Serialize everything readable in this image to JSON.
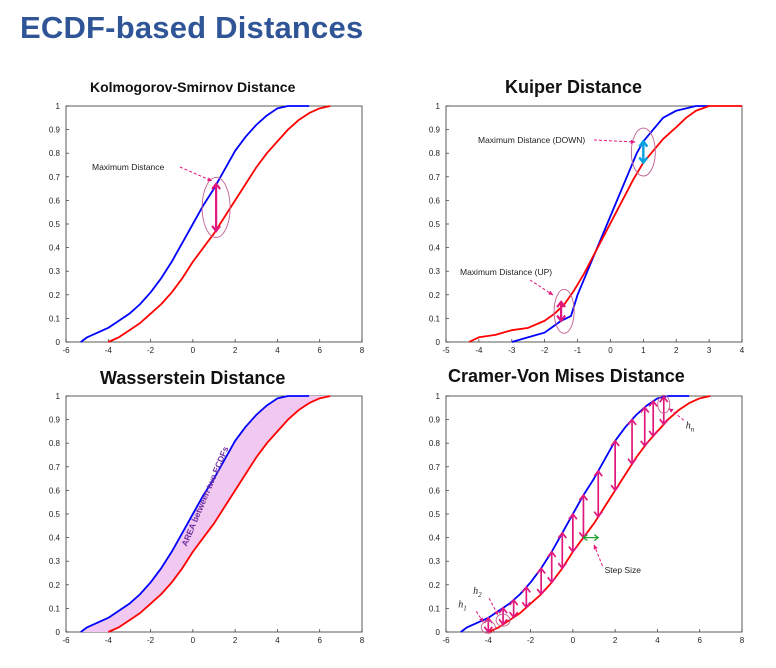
{
  "title": "ECDF-based Distances",
  "colors": {
    "title": "#2f5597",
    "blue": "#0000ff",
    "red": "#ff0000",
    "arrow": "#e0187d",
    "ellipse": "#c06090",
    "fill": "#f0c8f0",
    "area_text": "#7030a0",
    "step": "#1aa32a",
    "cyan": "#00a0e0"
  },
  "chart_data": [
    {
      "type": "line",
      "title": "Kolmogorov-Smirnov Distance",
      "xlim": [
        -6,
        8
      ],
      "ylim": [
        0,
        1
      ],
      "xticks": [
        "-6",
        "-4",
        "-2",
        "0",
        "2",
        "4",
        "6",
        "8"
      ],
      "yticks": [
        "0",
        "0.1",
        "0.2",
        "0.3",
        "0.4",
        "0.5",
        "0.6",
        "0.7",
        "0.8",
        "0.9",
        "1"
      ],
      "series": [
        {
          "color": "#0000ff",
          "x": [
            -5.3,
            -5.0,
            -4.5,
            -4.0,
            -3.5,
            -3.0,
            -2.5,
            -2.0,
            -1.5,
            -1.0,
            -0.5,
            0.0,
            0.5,
            1.0,
            1.5,
            2.0,
            2.5,
            3.0,
            3.5,
            4.0,
            4.5,
            5.0,
            5.5
          ],
          "y": [
            0,
            0.02,
            0.04,
            0.06,
            0.09,
            0.12,
            0.16,
            0.21,
            0.27,
            0.34,
            0.42,
            0.5,
            0.58,
            0.65,
            0.73,
            0.81,
            0.87,
            0.92,
            0.96,
            0.99,
            1,
            1,
            1
          ]
        },
        {
          "color": "#ff0000",
          "x": [
            -4.0,
            -3.5,
            -3.0,
            -2.5,
            -2.0,
            -1.5,
            -1.0,
            -0.5,
            0.0,
            0.5,
            1.0,
            1.5,
            2.0,
            2.5,
            3.0,
            3.5,
            4.0,
            4.5,
            5.0,
            5.5,
            6.0,
            6.5
          ],
          "y": [
            0,
            0.02,
            0.05,
            0.08,
            0.12,
            0.16,
            0.21,
            0.27,
            0.34,
            0.4,
            0.46,
            0.53,
            0.6,
            0.67,
            0.74,
            0.8,
            0.85,
            0.9,
            0.94,
            0.97,
            0.99,
            1
          ]
        }
      ],
      "annotations": [
        {
          "text": "Maximum Distance",
          "x": 1.1,
          "y_from": 0.47,
          "y_to": 0.67
        }
      ]
    },
    {
      "type": "line",
      "title": "Kuiper Distance",
      "xlim": [
        -5,
        4
      ],
      "ylim": [
        0,
        1
      ],
      "xticks": [
        "-5",
        "-4",
        "-3",
        "-2",
        "-1",
        "0",
        "1",
        "2",
        "3",
        "4"
      ],
      "yticks": [
        "0",
        "0.1",
        "0.2",
        "0.3",
        "0.4",
        "0.5",
        "0.6",
        "0.7",
        "0.8",
        "0.9",
        "1"
      ],
      "series": [
        {
          "color": "#0000ff",
          "x": [
            -3.0,
            -2.5,
            -2.0,
            -1.8,
            -1.5,
            -1.2,
            -1.0,
            -0.7,
            -0.4,
            -0.1,
            0.2,
            0.5,
            0.8,
            1.0,
            1.3,
            1.6,
            2.0,
            2.3,
            2.6,
            3.0
          ],
          "y": [
            0,
            0.02,
            0.04,
            0.06,
            0.09,
            0.11,
            0.2,
            0.3,
            0.4,
            0.5,
            0.6,
            0.7,
            0.8,
            0.85,
            0.9,
            0.95,
            0.98,
            0.99,
            1,
            1
          ]
        },
        {
          "color": "#ff0000",
          "x": [
            -4.3,
            -4.0,
            -3.5,
            -3.0,
            -2.5,
            -2.0,
            -1.7,
            -1.4,
            -1.1,
            -0.8,
            -0.5,
            -0.2,
            0.1,
            0.4,
            0.7,
            1.0,
            1.3,
            1.6,
            2.0,
            2.3,
            2.6,
            3.0,
            3.5,
            4.0
          ],
          "y": [
            0,
            0.02,
            0.03,
            0.05,
            0.06,
            0.09,
            0.12,
            0.16,
            0.22,
            0.29,
            0.37,
            0.45,
            0.53,
            0.61,
            0.69,
            0.76,
            0.81,
            0.86,
            0.91,
            0.95,
            0.98,
            1,
            1,
            1
          ]
        }
      ],
      "annotations": [
        {
          "text": "Maximum Distance (DOWN)",
          "x": 1.0,
          "y_from": 0.76,
          "y_to": 0.85
        },
        {
          "text": "Maximum Distance (UP)",
          "x": -1.5,
          "y_from": 0.09,
          "y_to": 0.17
        }
      ]
    },
    {
      "type": "area",
      "title": "Wasserstein Distance",
      "xlim": [
        -6,
        8
      ],
      "ylim": [
        0,
        1
      ],
      "xticks": [
        "-6",
        "-4",
        "-2",
        "0",
        "2",
        "4",
        "6",
        "8"
      ],
      "yticks": [
        "0",
        "0.1",
        "0.2",
        "0.3",
        "0.4",
        "0.5",
        "0.6",
        "0.7",
        "0.8",
        "0.9",
        "1"
      ],
      "series_ref": 0,
      "annotations": [
        {
          "text": "AREA between two ECDFs"
        }
      ]
    },
    {
      "type": "line",
      "title": "Cramer-Von Mises Distance",
      "xlim": [
        -6,
        8
      ],
      "ylim": [
        0,
        1
      ],
      "xticks": [
        "-6",
        "-4",
        "-2",
        "0",
        "2",
        "4",
        "6",
        "8"
      ],
      "yticks": [
        "0",
        "0.1",
        "0.2",
        "0.3",
        "0.4",
        "0.5",
        "0.6",
        "0.7",
        "0.8",
        "0.9",
        "1"
      ],
      "series_ref": 0,
      "arrow_x": [
        -4.0,
        -3.3,
        -2.8,
        -2.2,
        -1.5,
        -1.0,
        -0.5,
        0.0,
        0.5,
        1.2,
        2.0,
        2.8,
        3.4,
        3.8,
        4.3
      ],
      "annotations": [
        {
          "text": "Step Size"
        },
        {
          "text": "h",
          "sub": "1"
        },
        {
          "text": "h",
          "sub": "2"
        },
        {
          "text": "h",
          "sub": "n"
        }
      ]
    }
  ]
}
